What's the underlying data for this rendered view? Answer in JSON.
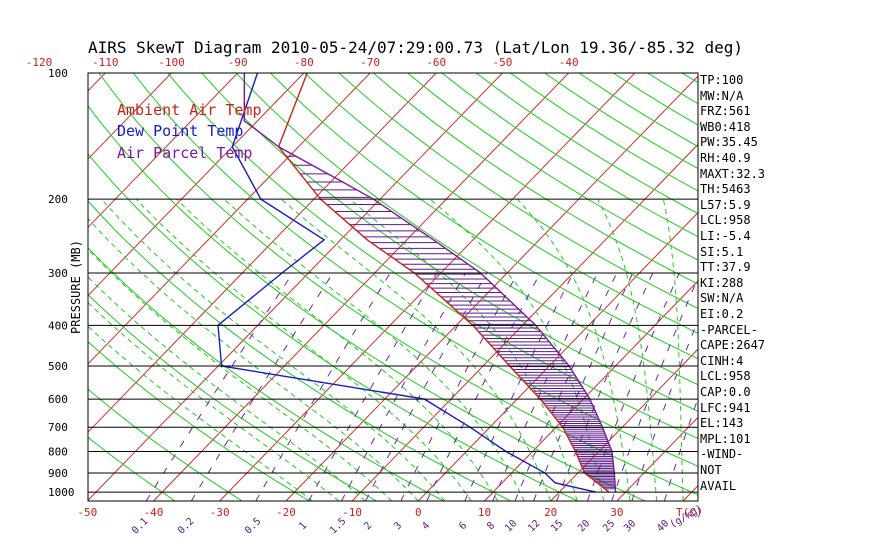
{
  "title": "AIRS SkewT Diagram 2010-05-24/07:29:00.73 (Lat/Lon 19.36/-85.32 deg)",
  "chart_data": {
    "type": "line",
    "title": "AIRS SkewT Diagram 2010-05-24/07:29:00.73 (Lat/Lon 19.36/-85.32 deg)",
    "ylabel": "PRESSURE (MB)",
    "xlabel": "T(C)",
    "mixing_ratio_unit": "(g/kg)",
    "pressure_ticks": [
      100,
      200,
      300,
      400,
      500,
      600,
      700,
      800,
      900,
      1000
    ],
    "pressure_range": [
      100,
      1050
    ],
    "top_temperature_ticks": [
      -120,
      -110,
      -100,
      -90,
      -80,
      -70,
      -60,
      -50,
      -40
    ],
    "bottom_temperature_ticks": [
      -50,
      -40,
      -30,
      -20,
      -10,
      0,
      10,
      20,
      30
    ],
    "mixing_ratio_ticks": [
      "0.1",
      "0.2",
      "0.5",
      "1",
      "1.5",
      "2",
      "3",
      "4",
      "6",
      "8",
      "10",
      "12",
      "15",
      "20",
      "25",
      "30",
      "40"
    ],
    "legend": [
      {
        "name": "Ambient Air Temp",
        "color": "#cc2020"
      },
      {
        "name": "Dew Point Temp",
        "color": "#1a1acc"
      },
      {
        "name": "Air Parcel Temp",
        "color": "#7a1a9a"
      }
    ],
    "series": [
      {
        "name": "Ambient Air Temp",
        "color": "#cc2020",
        "points": [
          [
            100,
            -79.5
          ],
          [
            150,
            -73
          ],
          [
            200,
            -59
          ],
          [
            250,
            -46
          ],
          [
            300,
            -34
          ],
          [
            400,
            -17.5
          ],
          [
            500,
            -6
          ],
          [
            600,
            3.5
          ],
          [
            700,
            11
          ],
          [
            800,
            16.5
          ],
          [
            900,
            21
          ],
          [
            1000,
            27.5
          ]
        ]
      },
      {
        "name": "Dew Point Temp",
        "color": "#1a1acc",
        "points": [
          [
            100,
            -87
          ],
          [
            150,
            -80
          ],
          [
            200,
            -68
          ],
          [
            250,
            -52.5
          ],
          [
            300,
            -54
          ],
          [
            400,
            -56
          ],
          [
            500,
            -49.5
          ],
          [
            600,
            -14
          ],
          [
            700,
            -3
          ],
          [
            800,
            6
          ],
          [
            900,
            15
          ],
          [
            950,
            18
          ],
          [
            1000,
            25.5
          ]
        ]
      },
      {
        "name": "Air Parcel Temp",
        "color": "#7a1a9a",
        "points": [
          [
            100,
            -89
          ],
          [
            130,
            -82
          ],
          [
            150,
            -73
          ],
          [
            180,
            -59
          ],
          [
            200,
            -51
          ],
          [
            250,
            -36
          ],
          [
            300,
            -24
          ],
          [
            400,
            -8
          ],
          [
            500,
            3
          ],
          [
            600,
            11
          ],
          [
            700,
            17
          ],
          [
            800,
            22
          ],
          [
            900,
            25.5
          ],
          [
            1000,
            28.5
          ]
        ]
      }
    ]
  },
  "indices": [
    "TP:100",
    "MW:N/A",
    "FRZ:561",
    "WB0:418",
    "PW:35.45",
    "RH:40.9",
    "MAXT:32.3",
    "TH:5463",
    "L57:5.9",
    "LCL:958",
    "LI:-5.4",
    "SI:5.1",
    "TT:37.9",
    "KI:288",
    "SW:N/A",
    "EI:0.2",
    "-PARCEL-",
    "CAPE:2647",
    "CINH:4",
    "LCL:958",
    "CAP:0.0",
    "LFC:941",
    "EL:143",
    "MPL:101",
    "-WIND-",
    "NOT",
    "AVAIL"
  ]
}
